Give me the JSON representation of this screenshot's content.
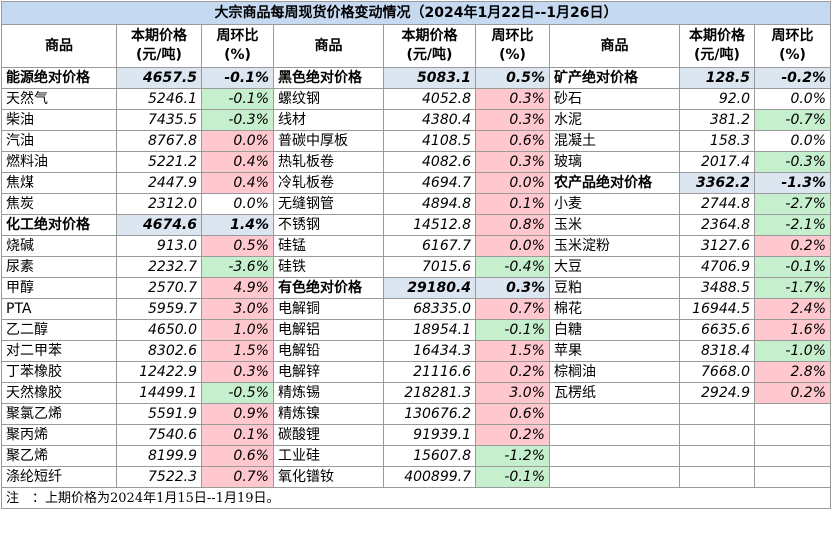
{
  "title": "大宗商品每周现货价格变动情况（2024年1月22日--1月26日）",
  "headers": {
    "name": "商品",
    "price_line1": "本期价格",
    "price_line2": "(元/吨)",
    "change_line1": "周环比",
    "change_line2": "(%)"
  },
  "rows": [
    [
      [
        "能源绝对价格",
        "4657.5",
        "-0.1%"
      ],
      [
        "黑色绝对价格",
        "5083.1",
        "0.5%"
      ],
      [
        "矿产绝对价格",
        "128.5",
        "-0.2%"
      ]
    ],
    [
      [
        "天然气",
        "5246.1",
        "-0.1%"
      ],
      [
        "螺纹钢",
        "4052.8",
        "0.3%"
      ],
      [
        "砂石",
        "92.0",
        "0.0%"
      ]
    ],
    [
      [
        "柴油",
        "7435.5",
        "-0.3%"
      ],
      [
        "线材",
        "4380.4",
        "0.3%"
      ],
      [
        "水泥",
        "381.2",
        "-0.7%"
      ]
    ],
    [
      [
        "汽油",
        "8767.8",
        "0.0%"
      ],
      [
        "普碳中厚板",
        "4108.5",
        "0.6%"
      ],
      [
        "混凝土",
        "158.3",
        "0.0%"
      ]
    ],
    [
      [
        "燃料油",
        "5221.2",
        "0.4%"
      ],
      [
        "热轧板卷",
        "4082.6",
        "0.3%"
      ],
      [
        "玻璃",
        "2017.4",
        "-0.3%"
      ]
    ],
    [
      [
        "焦煤",
        "2447.9",
        "0.4%"
      ],
      [
        "冷轧板卷",
        "4694.7",
        "0.0%"
      ],
      [
        "农产品绝对价格",
        "3362.2",
        "-1.3%"
      ]
    ],
    [
      [
        "焦炭",
        "2312.0",
        "0.0%"
      ],
      [
        "无缝钢管",
        "4894.8",
        "0.1%"
      ],
      [
        "小麦",
        "2744.8",
        "-2.7%"
      ]
    ],
    [
      [
        "化工绝对价格",
        "4674.6",
        "1.4%"
      ],
      [
        "不锈钢",
        "14512.8",
        "0.8%"
      ],
      [
        "玉米",
        "2364.8",
        "-2.1%"
      ]
    ],
    [
      [
        "烧碱",
        "913.0",
        "0.5%"
      ],
      [
        "硅锰",
        "6167.7",
        "0.0%"
      ],
      [
        "玉米淀粉",
        "3127.6",
        "0.2%"
      ]
    ],
    [
      [
        "尿素",
        "2232.7",
        "-3.6%"
      ],
      [
        "硅铁",
        "7015.6",
        "-0.4%"
      ],
      [
        "大豆",
        "4706.9",
        "-0.1%"
      ]
    ],
    [
      [
        "甲醇",
        "2570.7",
        "4.9%"
      ],
      [
        "有色绝对价格",
        "29180.4",
        "0.3%"
      ],
      [
        "豆粕",
        "3488.5",
        "-1.7%"
      ]
    ],
    [
      [
        "PTA",
        "5959.7",
        "3.0%"
      ],
      [
        "电解铜",
        "68335.0",
        "0.7%"
      ],
      [
        "棉花",
        "16944.5",
        "2.4%"
      ]
    ],
    [
      [
        "乙二醇",
        "4650.0",
        "1.0%"
      ],
      [
        "电解铝",
        "18954.1",
        "-0.1%"
      ],
      [
        "白糖",
        "6635.6",
        "1.6%"
      ]
    ],
    [
      [
        "对二甲苯",
        "8302.6",
        "1.5%"
      ],
      [
        "电解铅",
        "16434.3",
        "1.5%"
      ],
      [
        "苹果",
        "8318.4",
        "-1.0%"
      ]
    ],
    [
      [
        "丁苯橡胶",
        "12422.9",
        "0.3%"
      ],
      [
        "电解锌",
        "21116.6",
        "0.2%"
      ],
      [
        "棕榈油",
        "7668.0",
        "2.8%"
      ]
    ],
    [
      [
        "天然橡胶",
        "14499.1",
        "-0.5%"
      ],
      [
        "精炼锡",
        "218281.3",
        "3.0%"
      ],
      [
        "瓦楞纸",
        "2924.9",
        "0.2%"
      ]
    ],
    [
      [
        "聚氯乙烯",
        "5591.9",
        "0.9%"
      ],
      [
        "精炼镍",
        "130676.2",
        "0.6%"
      ],
      null
    ],
    [
      [
        "聚丙烯",
        "7540.6",
        "0.1%"
      ],
      [
        "碳酸锂",
        "91939.1",
        "0.2%"
      ],
      null
    ],
    [
      [
        "聚乙烯",
        "8199.9",
        "0.6%"
      ],
      [
        "工业硅",
        "15607.8",
        "-1.2%"
      ],
      null
    ],
    [
      [
        "涤纶短纤",
        "7522.3",
        "0.7%"
      ],
      [
        "氧化镨钕",
        "400899.7",
        "-0.1%"
      ],
      null
    ]
  ],
  "note": "注　：上期价格为2024年1月15日--1月19日。",
  "colors": {
    "title_bg": "#c5d9f1",
    "up_bg": "#ffc7ce",
    "down_bg": "#c6efce",
    "category_price_bg": "#dce6f1"
  }
}
